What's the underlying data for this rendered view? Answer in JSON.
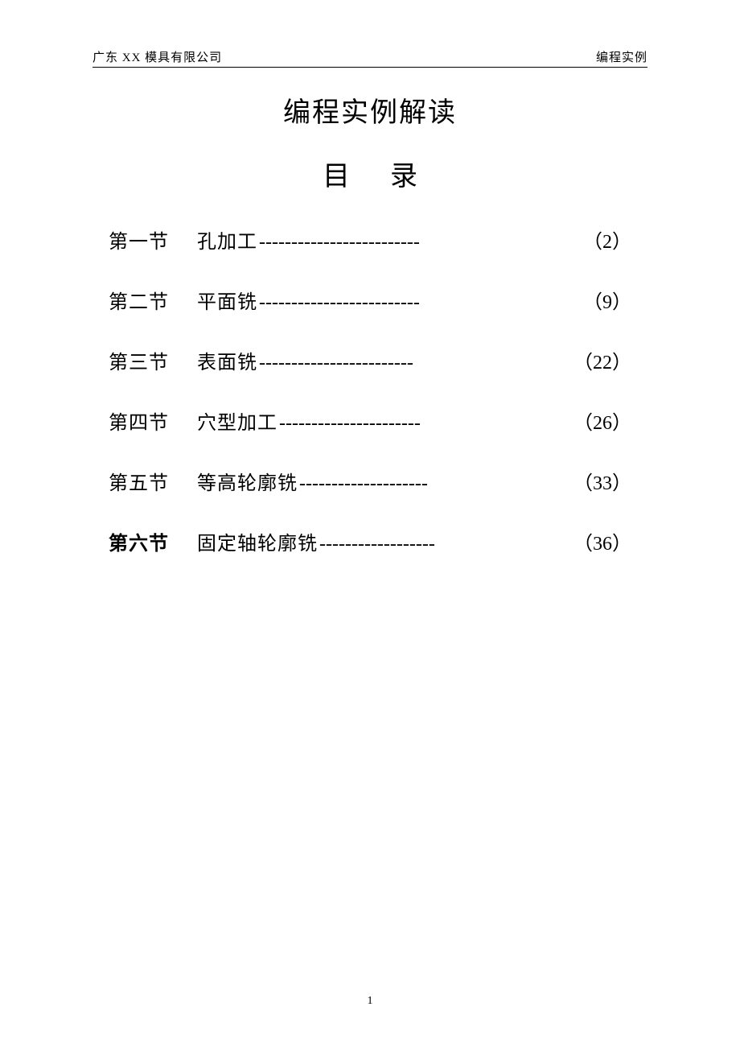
{
  "header": {
    "left": "广东 XX 模具有限公司",
    "right": "编程实例"
  },
  "title": "编程实例解读",
  "subtitle_char1": "目",
  "subtitle_char2": "录",
  "toc": [
    {
      "section": "第一节",
      "bold": false,
      "topic": "孔加工",
      "leader": "-------------------------",
      "page": "（2）"
    },
    {
      "section": "第二节",
      "bold": false,
      "topic": "平面铣",
      "leader": "-------------------------",
      "page": "（9）"
    },
    {
      "section": "第三节",
      "bold": false,
      "topic": "表面铣",
      "leader": "------------------------",
      "page": "（22）"
    },
    {
      "section": "第四节",
      "bold": false,
      "topic": "穴型加工",
      "leader": "----------------------",
      "page": "（26）"
    },
    {
      "section": "第五节",
      "bold": false,
      "topic": "等高轮廓铣",
      "leader": "--------------------",
      "page": "（33）"
    },
    {
      "section": "第六节",
      "bold": true,
      "topic": "固定轴轮廓铣",
      "leader": "------------------",
      "page": "（36）"
    }
  ],
  "footer_page": "1",
  "style": {
    "background_color": "#ffffff",
    "text_color": "#000000",
    "header_fontsize": 15,
    "title_fontsize": 34,
    "subtitle_fontsize": 34,
    "toc_fontsize": 24,
    "footer_fontsize": 14,
    "toc_row_gap": 40,
    "font_family": "SimSun"
  }
}
